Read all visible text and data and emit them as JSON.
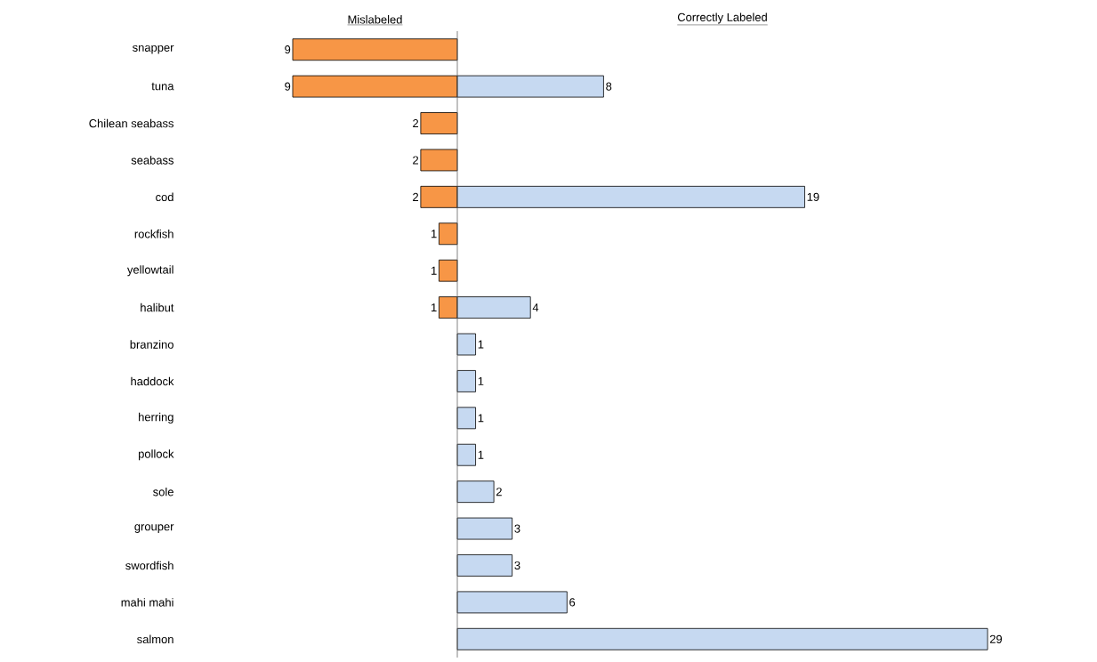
{
  "chart_data": [
    {
      "type": "bar",
      "orientation": "horizontal",
      "title": "Mislabeled",
      "tick_labels": "y",
      "categories": [
        "snapper",
        "tuna",
        "Chilean seabass",
        "seabass",
        "cod",
        "rockfish",
        "yellowtail",
        "halibut",
        "branzino",
        "haddock",
        "herring",
        "pollock",
        "sole",
        "grouper",
        "swordfish",
        "mahi mahi",
        "salmon"
      ],
      "xlim": [
        9,
        0
      ],
      "color": "#f79646",
      "data_labels": true,
      "values": [
        9,
        9,
        2,
        2,
        2,
        1,
        1,
        1,
        null,
        null,
        null,
        null,
        null,
        null,
        null,
        null,
        null
      ]
    },
    {
      "type": "bar",
      "orientation": "horizontal",
      "title": "Correctly Labeled",
      "tick_labels": false,
      "categories": [
        null,
        null,
        null,
        null,
        null,
        null,
        null,
        null,
        null,
        null,
        null,
        null,
        null,
        null,
        null,
        null,
        null
      ],
      "xlim": [
        0,
        29
      ],
      "color": "#c6d9f1",
      "data_labels": true,
      "values": [
        null,
        8,
        null,
        null,
        19,
        null,
        null,
        4,
        1,
        1,
        1,
        1,
        2,
        3,
        3,
        6,
        29
      ]
    }
  ]
}
